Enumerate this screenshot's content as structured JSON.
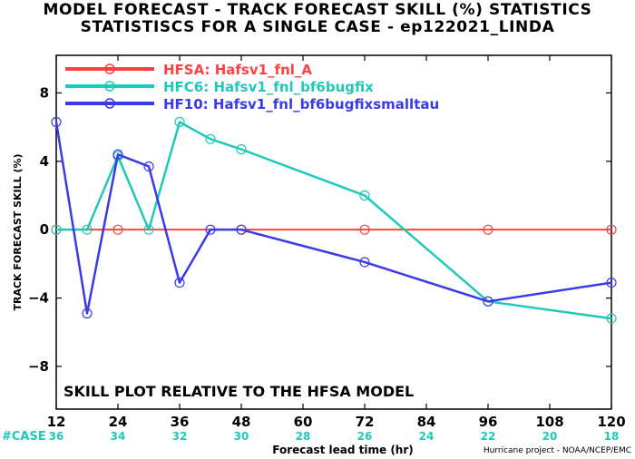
{
  "titles": {
    "line1": "MODEL FORECAST - TRACK FORECAST SKILL (%) STATISTICS",
    "line2": "STATISTISCS FOR A SINGLE CASE - ep122021_LINDA"
  },
  "credit": "Hurricane project - NOAA/NCEP/EMC",
  "chart_data": {
    "type": "line",
    "title": "MODEL FORECAST - TRACK FORECAST SKILL (%) STATISTICS",
    "subtitle": "STATISTISCS FOR A SINGLE CASE - ep122021_LINDA",
    "xlabel": "Forecast lead time (hr)",
    "ylabel": "TRACK FORECAST SKILL (%)",
    "xlim": [
      12,
      120
    ],
    "ylim": [
      -10.5,
      10.2
    ],
    "x_ticks": [
      12,
      24,
      36,
      48,
      60,
      72,
      84,
      96,
      108,
      120
    ],
    "y_ticks": [
      -8,
      -4,
      0,
      4,
      8
    ],
    "y_tick_labels": [
      "−8",
      "−4",
      "0",
      "4",
      "8"
    ],
    "case_label": "#CASE",
    "case_counts": [
      "36",
      "34",
      "32",
      "30",
      "28",
      "26",
      "24",
      "22",
      "20",
      "18"
    ],
    "annotation": "SKILL PLOT RELATIVE TO THE HFSA MODEL",
    "legend_position": "top-left",
    "grid": false,
    "series": [
      {
        "name": "HFSA: Hafsv1_fnl_A",
        "color": "#ff4040",
        "x": [
          12,
          24,
          48,
          72,
          96,
          120
        ],
        "y": [
          0,
          0,
          0,
          0,
          0,
          0
        ]
      },
      {
        "name": "HFC6: Hafsv1_fnl_bf6bugfix",
        "color": "#20c8b8",
        "x": [
          12,
          18,
          24,
          30,
          36,
          42,
          48,
          72,
          96,
          120
        ],
        "y": [
          0,
          0,
          4.3,
          0,
          6.3,
          5.3,
          4.7,
          2.0,
          -4.2,
          -5.2
        ]
      },
      {
        "name": "HF10: Hafsv1_fnl_bf6bugfixsmalltau",
        "color": "#3a3ae8",
        "x": [
          12,
          18,
          24,
          30,
          36,
          42,
          48,
          72,
          96,
          120
        ],
        "y": [
          6.3,
          -4.9,
          4.4,
          3.7,
          -3.1,
          0,
          0,
          -1.9,
          -4.2,
          -3.1
        ]
      }
    ]
  }
}
